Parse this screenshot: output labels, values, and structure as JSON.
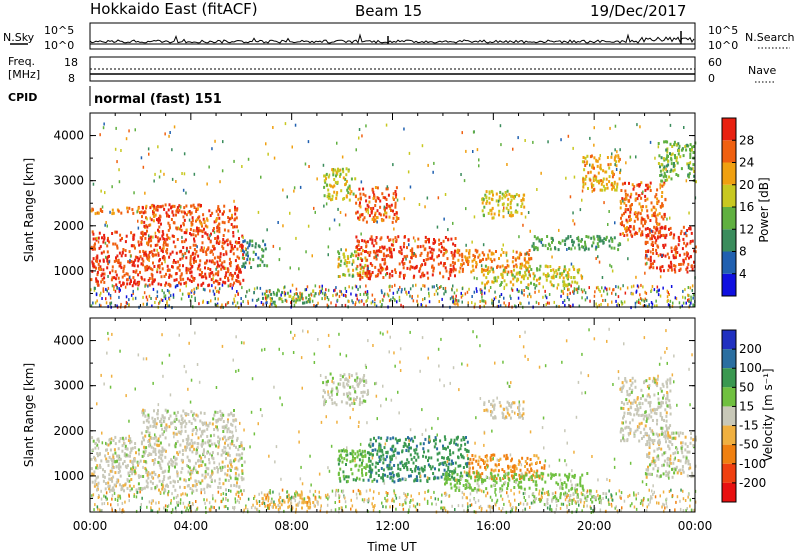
{
  "header": {
    "station": "Hokkaido East (fitACF)",
    "beam": "Beam 15",
    "date": "19/Dec/2017"
  },
  "top_panels": {
    "nsky_label": "N.Sky",
    "nsearch_label": "N.Search",
    "noise_ticks_left": [
      "10^5",
      "10^0"
    ],
    "noise_ticks_right": [
      "10^5",
      "10^0"
    ],
    "freq_label_1": "Freq.",
    "freq_label_2": "[MHz]",
    "freq_ticks": [
      "18",
      "8"
    ],
    "nave_label": "Nave",
    "nave_ticks": [
      "60",
      "0"
    ],
    "cpid_label": "CPID",
    "cpid_text": "normal (fast) 151"
  },
  "colors": {
    "power_scale": [
      "#1010e0",
      "#2060b0",
      "#3a8c5c",
      "#60b040",
      "#c8c820",
      "#f0a010",
      "#f06010",
      "#e82010"
    ],
    "velocity_scale": [
      "#2030c0",
      "#2a6ea0",
      "#3a9850",
      "#70c040",
      "#c8c8b8",
      "#f0b040",
      "#f08010",
      "#f04010",
      "#e81010"
    ]
  },
  "chart_data": [
    {
      "type": "heatmap",
      "panel": "power",
      "ylabel": "Slant Range [km]",
      "ylim": [
        200,
        4500
      ],
      "yticks": [
        1000,
        2000,
        3000,
        4000
      ],
      "xlim": [
        0,
        24
      ],
      "xticks": [
        "00:00",
        "04:00",
        "08:00",
        "12:00",
        "16:00",
        "20:00",
        "00:00"
      ],
      "colorbar_label": "Power [dB]",
      "colorbar_range": [
        0,
        32
      ],
      "colorbar_ticks": [
        4,
        8,
        12,
        16,
        20,
        24,
        28
      ],
      "regions": [
        {
          "t0": 0.0,
          "t1": 6.1,
          "r0": 700,
          "r1": 1900,
          "value": 28
        },
        {
          "t0": 2.0,
          "t1": 5.8,
          "r0": 1900,
          "r1": 2500,
          "value": 27
        },
        {
          "t0": 0.0,
          "t1": 2.0,
          "r0": 2300,
          "r1": 2450,
          "value": 24
        },
        {
          "t0": 6.0,
          "t1": 7.0,
          "r0": 1100,
          "r1": 1700,
          "value": 10
        },
        {
          "t0": 6.8,
          "t1": 9.0,
          "r0": 320,
          "r1": 620,
          "value": 14
        },
        {
          "t0": 9.2,
          "t1": 10.5,
          "r0": 2600,
          "r1": 3300,
          "value": 18
        },
        {
          "t0": 10.5,
          "t1": 12.2,
          "r0": 2100,
          "r1": 2900,
          "value": 27
        },
        {
          "t0": 9.8,
          "t1": 11.0,
          "r0": 900,
          "r1": 1500,
          "value": 18
        },
        {
          "t0": 10.5,
          "t1": 14.5,
          "r0": 850,
          "r1": 1800,
          "value": 28
        },
        {
          "t0": 14.5,
          "t1": 17.5,
          "r0": 1000,
          "r1": 1500,
          "value": 24
        },
        {
          "t0": 15.5,
          "t1": 19.5,
          "r0": 700,
          "r1": 1150,
          "value": 18
        },
        {
          "t0": 17.5,
          "t1": 21.0,
          "r0": 1500,
          "r1": 1800,
          "value": 12
        },
        {
          "t0": 15.5,
          "t1": 17.2,
          "r0": 2200,
          "r1": 2800,
          "value": 19
        },
        {
          "t0": 19.5,
          "t1": 21.0,
          "r0": 2800,
          "r1": 3600,
          "value": 22
        },
        {
          "t0": 21.0,
          "t1": 22.8,
          "r0": 1800,
          "r1": 3000,
          "value": 26
        },
        {
          "t0": 22.0,
          "t1": 24.0,
          "r0": 1000,
          "r1": 2000,
          "value": 29
        },
        {
          "t0": 22.5,
          "t1": 24.0,
          "r0": 3000,
          "r1": 3900,
          "value": 14
        }
      ]
    },
    {
      "type": "heatmap",
      "panel": "velocity",
      "ylabel": "Slant Range [km]",
      "ylim": [
        200,
        4500
      ],
      "yticks": [
        1000,
        2000,
        3000,
        4000
      ],
      "xlim": [
        0,
        24
      ],
      "xticks": [
        "00:00",
        "04:00",
        "08:00",
        "12:00",
        "16:00",
        "20:00",
        "00:00"
      ],
      "xlabel": "Time UT",
      "colorbar_label": "Velocity [m s⁻¹]",
      "colorbar_ticks": [
        "200",
        "100",
        "50",
        "15",
        "-15",
        "-50",
        "-100",
        "-200"
      ],
      "regions": [
        {
          "t0": 0.0,
          "t1": 6.1,
          "r0": 700,
          "r1": 1900,
          "value": 0
        },
        {
          "t0": 2.0,
          "t1": 5.8,
          "r0": 1900,
          "r1": 2500,
          "value": 0
        },
        {
          "t0": 6.8,
          "t1": 9.0,
          "r0": 320,
          "r1": 620,
          "value": -30
        },
        {
          "t0": 9.2,
          "t1": 11.0,
          "r0": 2600,
          "r1": 3300,
          "value": 5
        },
        {
          "t0": 9.8,
          "t1": 11.2,
          "r0": 900,
          "r1": 1600,
          "value": 40
        },
        {
          "t0": 11.0,
          "t1": 15.0,
          "r0": 900,
          "r1": 1900,
          "value": 90
        },
        {
          "t0": 15.0,
          "t1": 18.0,
          "r0": 950,
          "r1": 1500,
          "value": -60
        },
        {
          "t0": 14.0,
          "t1": 19.8,
          "r0": 700,
          "r1": 1100,
          "value": 30
        },
        {
          "t0": 17.5,
          "t1": 20.5,
          "r0": 450,
          "r1": 650,
          "value": 20
        },
        {
          "t0": 15.5,
          "t1": 17.2,
          "r0": 2300,
          "r1": 2700,
          "value": -5
        },
        {
          "t0": 21.0,
          "t1": 23.0,
          "r0": 1800,
          "r1": 3200,
          "value": 0
        },
        {
          "t0": 22.0,
          "t1": 24.0,
          "r0": 1000,
          "r1": 2000,
          "value": 0
        }
      ]
    }
  ]
}
